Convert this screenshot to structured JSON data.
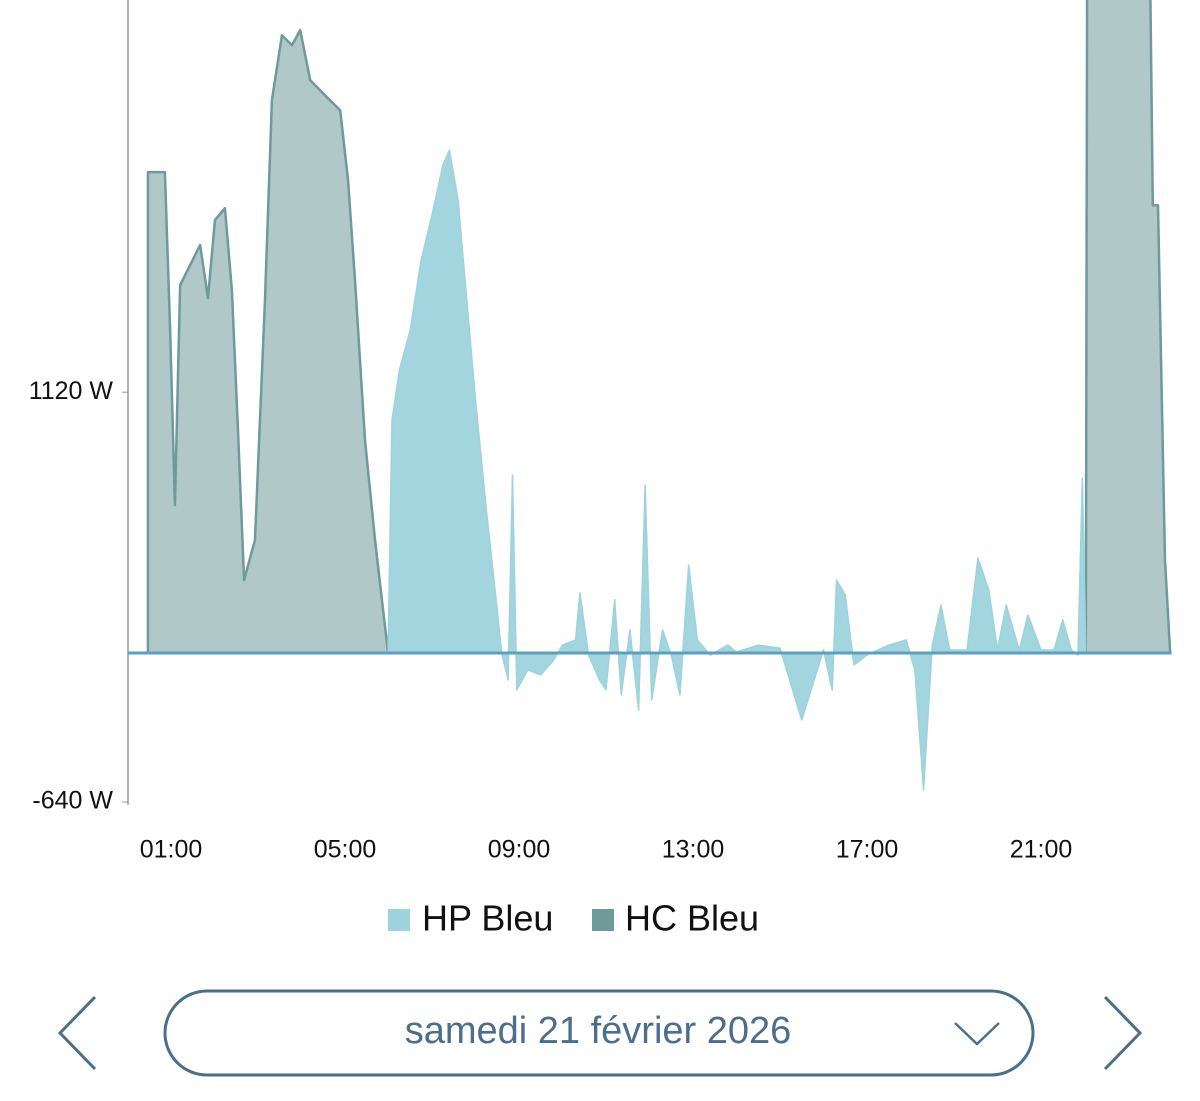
{
  "chart_data": {
    "type": "area",
    "x": [
      0.47,
      0.86,
      0.98,
      1.09,
      1.21,
      1.44,
      1.67,
      1.85,
      2.01,
      2.24,
      2.4,
      2.54,
      2.68,
      2.93,
      3.16,
      3.32,
      3.55,
      3.78,
      3.97,
      4.2,
      4.54,
      4.89,
      5.07,
      5.23,
      5.46,
      5.69,
      5.99,
      6.08,
      6.25,
      6.5,
      6.75,
      7.0,
      7.25,
      7.4,
      7.6,
      7.8,
      8.0,
      8.25,
      8.5,
      8.6,
      8.75,
      8.85,
      8.95,
      9.2,
      9.5,
      9.8,
      10.0,
      10.3,
      10.4,
      10.6,
      10.85,
      11.0,
      11.2,
      11.35,
      11.55,
      11.75,
      11.9,
      12.05,
      12.3,
      12.5,
      12.7,
      12.9,
      13.1,
      13.4,
      13.8,
      14.0,
      14.5,
      15.0,
      15.5,
      16.0,
      16.2,
      16.3,
      16.5,
      16.7,
      17.0,
      17.5,
      17.9,
      18.1,
      18.3,
      18.5,
      18.7,
      18.9,
      19.3,
      19.55,
      19.8,
      20.0,
      20.2,
      20.5,
      20.7,
      21.0,
      21.3,
      21.5,
      21.7,
      21.85,
      21.95,
      22.03,
      22.06,
      23.51,
      23.57,
      23.69,
      23.85,
      23.97
    ],
    "series": [
      {
        "name": "HC Bleu",
        "color": "#6f9a9a",
        "values": [
          2065,
          2065,
          1387,
          635,
          1580,
          1666,
          1752,
          1524,
          1859,
          1910,
          1558,
          957,
          313,
          485,
          1515,
          2374,
          2653,
          2610,
          2675,
          2460,
          2395,
          2331,
          2031,
          1601,
          914,
          485,
          0,
          null,
          null,
          null,
          null,
          null,
          null,
          null,
          null,
          null,
          null,
          null,
          null,
          null,
          null,
          null,
          null,
          null,
          null,
          null,
          null,
          null,
          null,
          null,
          null,
          null,
          null,
          null,
          null,
          null,
          null,
          null,
          null,
          null,
          null,
          null,
          null,
          null,
          null,
          null,
          null,
          null,
          null,
          null,
          null,
          null,
          null,
          null,
          null,
          null,
          null,
          null,
          null,
          null,
          null,
          null,
          null,
          null,
          null,
          null,
          null,
          null,
          null,
          null,
          null,
          null,
          null,
          null,
          null,
          0,
          2900,
          2900,
          1923,
          1923,
          400,
          0
        ]
      },
      {
        "name": "HP Bleu",
        "color": "#9dd3dc",
        "values": [
          null,
          null,
          null,
          null,
          null,
          null,
          null,
          null,
          null,
          null,
          null,
          null,
          null,
          null,
          null,
          null,
          null,
          null,
          null,
          null,
          null,
          null,
          null,
          null,
          null,
          null,
          0,
          1000,
          1215,
          1387,
          1687,
          1880,
          2095,
          2160,
          1945,
          1515,
          1086,
          614,
          185,
          0,
          -116,
          764,
          -159,
          -73,
          -94,
          -30,
          34,
          56,
          258,
          -9,
          -116,
          -159,
          228,
          -180,
          99,
          -245,
          721,
          -202,
          99,
          -9,
          -180,
          378,
          56,
          -9,
          34,
          4,
          34,
          21,
          -288,
          13,
          -159,
          313,
          249,
          -52,
          -9,
          34,
          56,
          -73,
          -588,
          34,
          206,
          13,
          13,
          408,
          270,
          13,
          206,
          13,
          163,
          13,
          13,
          142,
          13,
          -9,
          751,
          0,
          null,
          null,
          null,
          null,
          null,
          null
        ]
      }
    ],
    "xlim": [
      0,
      24
    ],
    "xticks": [
      {
        "value": 1,
        "label": "01:00"
      },
      {
        "value": 5,
        "label": "05:00"
      },
      {
        "value": 9,
        "label": "09:00"
      },
      {
        "value": 13,
        "label": "13:00"
      },
      {
        "value": 17,
        "label": "17:00"
      },
      {
        "value": 21,
        "label": "21:00"
      }
    ],
    "ylim": [
      -640,
      2800
    ],
    "yticks": [
      {
        "value": -640,
        "label": "-640 W"
      },
      {
        "value": 1120,
        "label": "1120 W"
      }
    ],
    "grid": false,
    "legend": "bottom"
  },
  "date_picker": {
    "label": "samedi 21 février 2026"
  }
}
